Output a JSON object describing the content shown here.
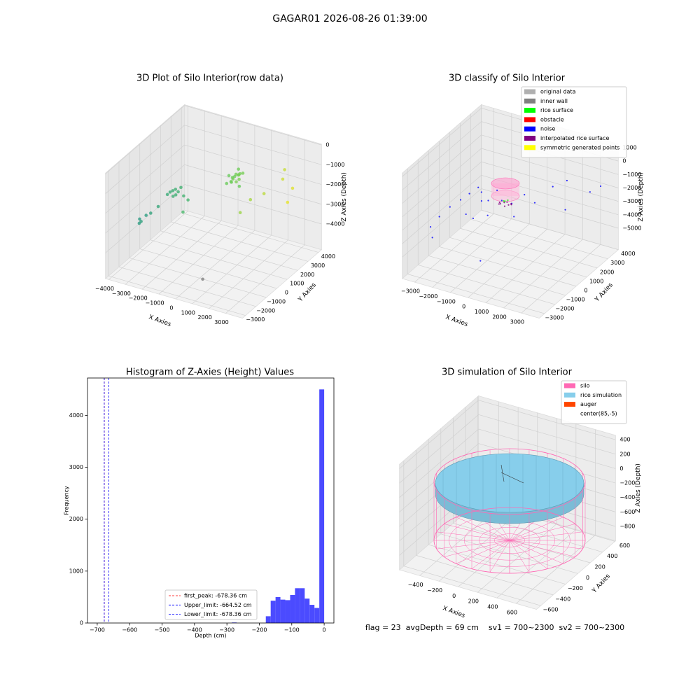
{
  "title": "GAGAR01 2026-08-26 01:39:00",
  "footer": "flag = 23  avgDepth = 69 cm    sv1 = 700~2300  sv2 = 700~2300",
  "chart_data": [
    {
      "type": "scatter3d",
      "title": "3D Plot of Silo Interior(row data)",
      "xlabel": "X Axies",
      "ylabel": "Y Axies",
      "zlabel": "Z Axies (Depth)",
      "xlim": [
        -4200,
        4000
      ],
      "ylim": [
        -3300,
        4300
      ],
      "zlim": [
        -5300,
        40
      ],
      "xticks": [
        {
          "value": -4000,
          "label": "−4000"
        },
        {
          "value": -3000,
          "label": "−3000"
        },
        {
          "value": -2000,
          "label": "−2000"
        },
        {
          "value": -1000,
          "label": "−1000"
        },
        0,
        1000,
        2000,
        3000
      ],
      "yticks": [
        {
          "value": -3000,
          "label": "−3000"
        },
        {
          "value": -2000,
          "label": "−2000"
        },
        {
          "value": -1000,
          "label": "−1000"
        },
        0,
        1000,
        2000,
        3000,
        4000
      ],
      "zticks": [
        0,
        {
          "value": -1000,
          "label": "−1000"
        },
        {
          "value": -2000,
          "label": "−2000"
        },
        {
          "value": -3000,
          "label": "−3000"
        },
        {
          "value": -4000,
          "label": "−4000"
        }
      ],
      "series": [
        {
          "cmap": [
            "#21918c",
            "#5ec962",
            "#fde725"
          ],
          "x": [
            200,
            350,
            500,
            650,
            300,
            450,
            600,
            750,
            400,
            550,
            250,
            700,
            500,
            350,
            600,
            1800,
            2300,
            2800,
            3200,
            3400,
            1500,
            2600,
            -2200,
            -2100,
            -2000,
            -1900,
            -2300,
            -1800,
            -2050,
            -1950,
            -1700,
            -1500,
            -1300,
            -2600,
            -2800,
            -3300,
            -3400,
            -3200,
            -3000,
            200
          ],
          "y": [
            1500,
            1600,
            1400,
            1700,
            1900,
            1300,
            1800,
            1600,
            2100,
            2000,
            1200,
            1400,
            1700,
            1500,
            2200,
            1000,
            1500,
            2500,
            2800,
            2000,
            500,
            3000,
            -300,
            -200,
            -100,
            0,
            -400,
            100,
            -250,
            -150,
            200,
            300,
            -500,
            -800,
            -1200,
            -1500,
            -1300,
            -1000,
            -1800,
            2500
          ],
          "z": [
            -1200,
            -1300,
            -1250,
            -1150,
            -1400,
            -1350,
            -1200,
            -1300,
            -1100,
            -1250,
            -1450,
            -1350,
            -1150,
            -1500,
            -1300,
            -1800,
            -1600,
            -1200,
            -1700,
            -2000,
            -2300,
            -1000,
            -1800,
            -1750,
            -1700,
            -1850,
            -1900,
            -1650,
            -2000,
            -1950,
            -2100,
            -2300,
            -2500,
            -2400,
            -2600,
            -3100,
            -3000,
            -2900,
            -2800,
            -2200
          ]
        },
        {
          "color": "#808080",
          "x": [
            500
          ],
          "y": [
            -1500
          ],
          "z": [
            -5000
          ]
        }
      ]
    },
    {
      "type": "scatter3d",
      "title": "3D classify of Silo Interior",
      "xlabel": "X Axies",
      "ylabel": "Y Axies",
      "zlabel": "Z Axies (Depth)",
      "xlim": [
        -3700,
        4000
      ],
      "ylim": [
        -3500,
        4000
      ],
      "zlim": [
        -6600,
        1260
      ],
      "xticks": [
        {
          "value": -3000,
          "label": "−3000"
        },
        {
          "value": -2000,
          "label": "−2000"
        },
        {
          "value": -1000,
          "label": "−1000"
        },
        0,
        1000,
        2000,
        3000
      ],
      "yticks": [
        {
          "value": -3000,
          "label": "−3000"
        },
        {
          "value": -2000,
          "label": "−2000"
        },
        {
          "value": -1000,
          "label": "−1000"
        },
        0,
        1000,
        2000,
        3000,
        4000
      ],
      "zticks": [
        1000,
        0,
        {
          "value": -1000,
          "label": "−1000"
        },
        {
          "value": -2000,
          "label": "−2000"
        },
        {
          "value": -3000,
          "label": "−3000"
        },
        {
          "value": -4000,
          "label": "−4000"
        },
        {
          "value": -5000,
          "label": "−5000"
        }
      ],
      "legend": "upper right",
      "series": [
        {
          "name": "original data",
          "color": "#b0b0b0",
          "x": [],
          "y": [],
          "z": []
        },
        {
          "name": "inner wall",
          "color": "#808080",
          "x": [],
          "y": [],
          "z": []
        },
        {
          "name": "rice surface",
          "color": "#00ff00",
          "x": [
            0,
            100,
            -100
          ],
          "y": [
            0,
            100,
            50
          ],
          "z": [
            -1800,
            -1750,
            -1850
          ]
        },
        {
          "name": "obstacle",
          "color": "#ff0000",
          "x": [],
          "y": [],
          "z": []
        },
        {
          "name": "noise",
          "color": "#0000ff",
          "x": [
            -3000,
            -2800,
            -2500,
            -2200,
            -2000,
            -1800,
            -1500,
            -1200,
            -1000,
            -800,
            -500,
            -300,
            200,
            500,
            800,
            1200,
            1500,
            2000,
            2500,
            3000,
            3300,
            -2600,
            -1600,
            -900,
            100
          ],
          "y": [
            -2000,
            -1500,
            -1000,
            -500,
            0,
            500,
            300,
            -200,
            100,
            600,
            -800,
            200,
            300,
            1000,
            -500,
            800,
            2000,
            2500,
            1500,
            3000,
            3500,
            -2500,
            -1000,
            -1500,
            -2500
          ],
          "z": [
            -3500,
            -3000,
            -2500,
            -2200,
            -2000,
            -1800,
            -1900,
            -2100,
            -2200,
            -1700,
            -2500,
            -2000,
            -2100,
            -1800,
            -2300,
            -2000,
            -1500,
            -1200,
            -2500,
            -2000,
            -1800,
            -3800,
            -2700,
            -2400,
            -4500
          ]
        },
        {
          "name": "interpolated rice surface",
          "color": "#800080",
          "x": [
            -300,
            -200,
            -100,
            0,
            100,
            200,
            300,
            -250,
            250
          ],
          "y": [
            0,
            -100,
            100,
            200,
            -200,
            0,
            100,
            -150,
            150
          ],
          "z": [
            -2000,
            -2000,
            -2000,
            -2000,
            -2000,
            -2000,
            -2000,
            -2000,
            -2000
          ]
        },
        {
          "name": "symmetric generated points",
          "color": "#ffff00",
          "x": [],
          "y": [],
          "z": []
        }
      ]
    },
    {
      "type": "histogram",
      "title": "Histogram of Z-Axies (Height) Values",
      "xlabel": "Depth (cm)",
      "ylabel": "Frequency",
      "color": "#4b4bff",
      "xlim": [
        -730,
        30
      ],
      "ylim": [
        0,
        4720
      ],
      "xticks": [
        {
          "value": -700,
          "label": "−700"
        },
        {
          "value": -600,
          "label": "−600"
        },
        {
          "value": -500,
          "label": "−500"
        },
        {
          "value": -400,
          "label": "−400"
        },
        {
          "value": -300,
          "label": "−300"
        },
        {
          "value": -200,
          "label": "−200"
        },
        {
          "value": -100,
          "label": "−100"
        },
        0
      ],
      "yticks": [
        0,
        1000,
        2000,
        3000,
        4000
      ],
      "bins": [
        -675,
        -660,
        -645,
        -630,
        -615,
        -600,
        -585,
        -570,
        -555,
        -540,
        -525,
        -510,
        -495,
        -480,
        -465,
        -450,
        -435,
        -420,
        -405,
        -390,
        -375,
        -360,
        -345,
        -330,
        -315,
        -300,
        -285,
        -270,
        -255,
        -240,
        -225,
        -210,
        -195,
        -180,
        -165,
        -150,
        -135,
        -120,
        -105,
        -90,
        -75,
        -60,
        -45,
        -30,
        -15,
        0
      ],
      "values": [
        0,
        0,
        0,
        0,
        0,
        0,
        0,
        0,
        0,
        0,
        0,
        0,
        0,
        0,
        0,
        0,
        0,
        0,
        0,
        0,
        0,
        0,
        0,
        0,
        0,
        0,
        10,
        0,
        0,
        0,
        0,
        0,
        0,
        130,
        430,
        500,
        450,
        440,
        540,
        670,
        670,
        470,
        350,
        290,
        4500
      ],
      "lines": [
        {
          "label": "first_peak: -678.36 cm",
          "value": -678.36,
          "color": "#ff0000"
        },
        {
          "label": "Upper_limit: -664.52 cm",
          "value": -664.52,
          "color": "#0000ff"
        },
        {
          "label": "Lower_limit: -678.36 cm",
          "value": -678.36,
          "color": "#0000ff"
        }
      ],
      "legend": "lower center"
    },
    {
      "type": "surface3d",
      "title": "3D simulation of Silo Interior",
      "xlabel": "X Axies",
      "ylabel": "Y Axies",
      "zlabel": "Z Axies (Depth)",
      "xlim": [
        -610,
        810
      ],
      "ylim": [
        -670,
        610
      ],
      "zlim": [
        -1000,
        460
      ],
      "xticks": [
        {
          "value": -400,
          "label": "−400"
        },
        {
          "value": -200,
          "label": "−200"
        },
        0,
        200,
        400,
        600
      ],
      "yticks": [
        {
          "value": -600,
          "label": "−600"
        },
        {
          "value": -400,
          "label": "−400"
        },
        {
          "value": -200,
          "label": "−200"
        },
        0,
        200,
        400,
        600
      ],
      "zticks": [
        400,
        200,
        0,
        {
          "value": -200,
          "label": "−200"
        },
        {
          "value": -400,
          "label": "−400"
        },
        {
          "value": -600,
          "label": "−600"
        },
        {
          "value": -800,
          "label": "−800"
        }
      ],
      "legend": "upper right",
      "series": [
        {
          "name": "silo",
          "color": "#ff69b4"
        },
        {
          "name": "rice simulation",
          "color": "#87ceeb"
        },
        {
          "name": "auger",
          "color": "#ff4500"
        },
        {
          "name": "center(85,-5)",
          "color": "#ffffff"
        }
      ]
    }
  ]
}
